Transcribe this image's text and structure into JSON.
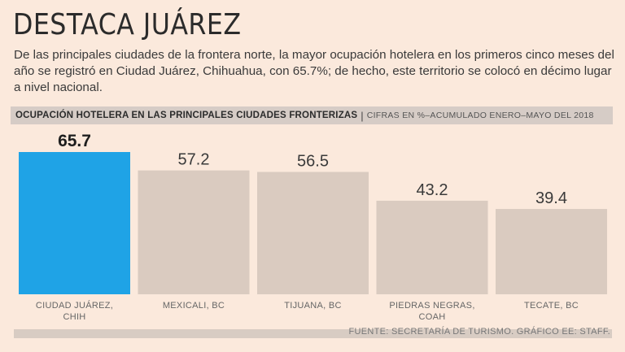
{
  "header": {
    "title": "DESTACA JUÁREZ",
    "lead": "De las principales ciudades de la frontera norte, la mayor ocupación hotelera en los primeros cinco meses del año se registró en Ciudad Juárez, Chihuahua, con 65.7%; de hecho, este territorio se colocó en décimo lugar a nivel nacional."
  },
  "chart_header": {
    "title": "OCUPACIÓN HOTELERA EN LAS PRINCIPALES CIUDADES FRONTERIZAS",
    "separator": "|",
    "subtitle": "CIFRAS EN %–ACUMULADO ENERO–MAYO DEL 2018"
  },
  "chart_data": {
    "type": "bar",
    "title": "OCUPACIÓN HOTELERA EN LAS PRINCIPALES CIUDADES FRONTERIZAS",
    "subtitle": "CIFRAS EN %–ACUMULADO ENERO–MAYO DEL 2018",
    "categories": [
      "CIUDAD JUÁREZ, CHIH",
      "MEXICALI, BC",
      "TIJUANA, BC",
      "PIEDRAS NEGRAS, COAH",
      "TECATE, BC"
    ],
    "category_lines": [
      [
        "CIUDAD JUÁREZ,",
        "CHIH"
      ],
      [
        "MEXICALI, BC"
      ],
      [
        "TIJUANA, BC"
      ],
      [
        "PIEDRAS NEGRAS,",
        "COAH"
      ],
      [
        "TECATE, BC"
      ]
    ],
    "values": [
      65.7,
      57.2,
      56.5,
      43.2,
      39.4
    ],
    "value_labels": [
      "65.7",
      "57.2",
      "56.5",
      "43.2",
      "39.4"
    ],
    "highlight_index": 0,
    "ylim": [
      0,
      65.7
    ],
    "grid": false,
    "colors": {
      "highlight": "#1fa3e6",
      "default": "#dacbc0"
    }
  },
  "footer": {
    "source": "FUENTE: SECRETARÍA DE TURISMO. GRÁFICO EE: STAFF."
  }
}
